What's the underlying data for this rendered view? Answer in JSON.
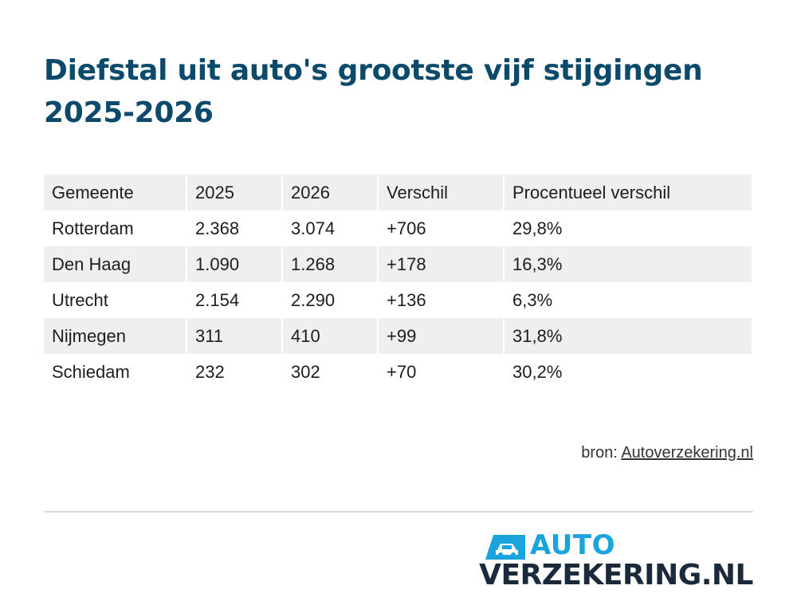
{
  "title": "Diefstal uit auto's grootste vijf stijgingen 2025-2026",
  "chart_data": {
    "type": "table",
    "title": "Diefstal uit auto's grootste vijf stijgingen 2025-2026",
    "columns": [
      "Gemeente",
      "2025",
      "2026",
      "Verschil",
      "Procentueel verschil"
    ],
    "rows": [
      [
        "Rotterdam",
        "2.368",
        "3.074",
        "+706",
        "29,8%"
      ],
      [
        "Den Haag",
        "1.090",
        "1.268",
        "+178",
        "16,3%"
      ],
      [
        "Utrecht",
        "2.154",
        "2.290",
        "+136",
        "6,3%"
      ],
      [
        "Nijmegen",
        "311",
        "410",
        "+99",
        "31,8%"
      ],
      [
        "Schiedam",
        "232",
        "302",
        "+70",
        "30,2%"
      ]
    ]
  },
  "source": {
    "prefix": "bron: ",
    "link_text": "Autoverzekering.nl"
  },
  "logo": {
    "top": "AUTO",
    "bottom": "VERZEKERING.NL",
    "accent_color": "#1aa3dd",
    "dark_color": "#1b2a3b",
    "icon": "car-icon"
  },
  "colors": {
    "title": "#0b4a6b",
    "stripe": "#efefef"
  }
}
